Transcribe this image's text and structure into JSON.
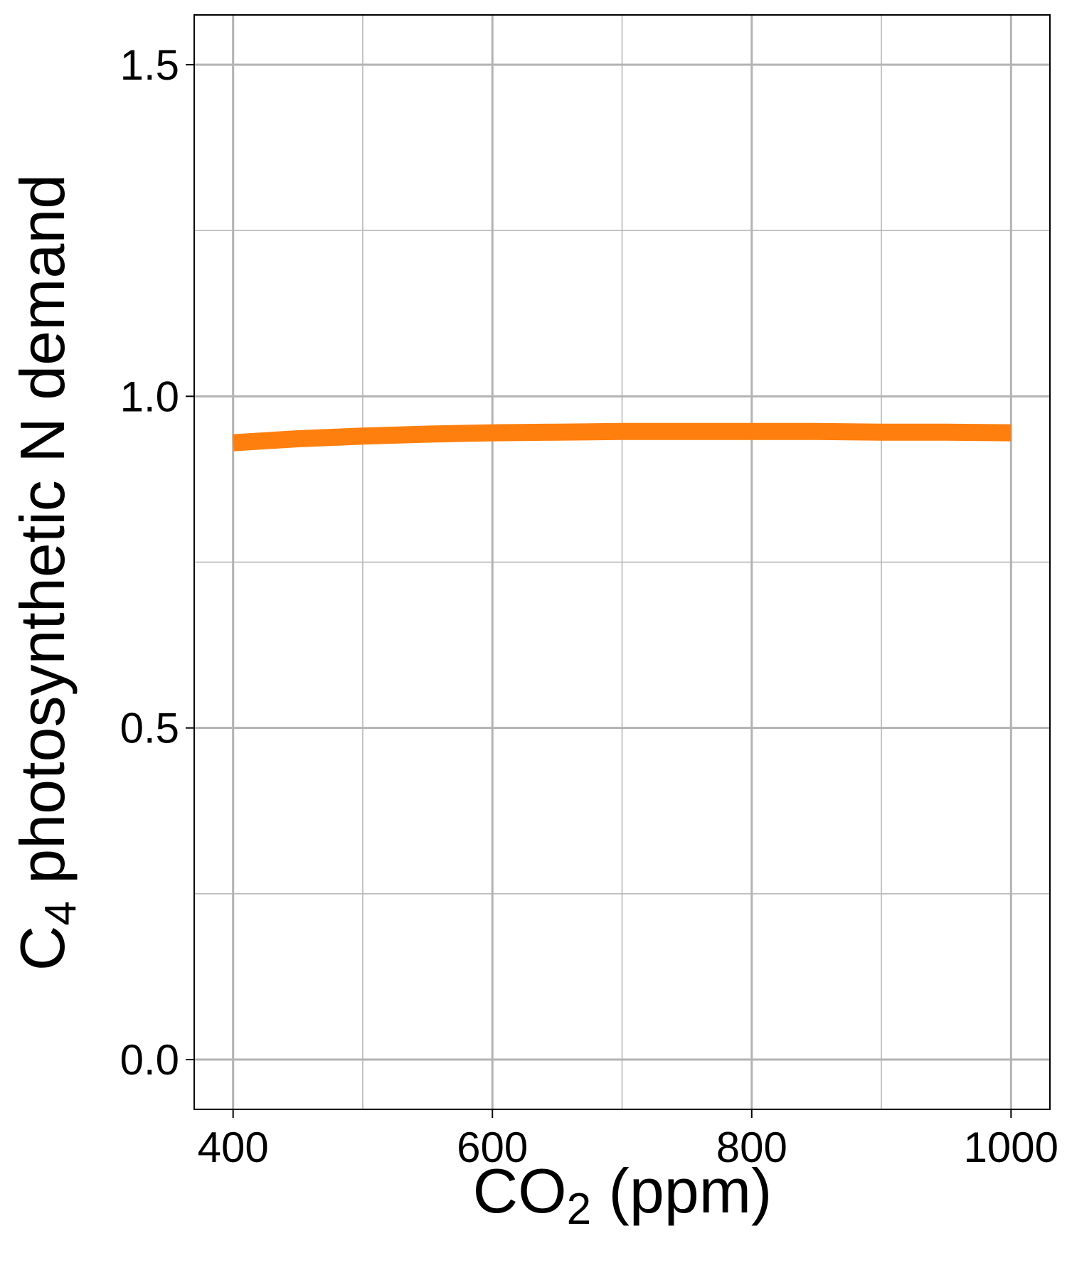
{
  "chart_data": {
    "type": "line",
    "title": "",
    "xlabel": {
      "main": "CO",
      "sub": "2",
      "suffix": " (ppm)"
    },
    "ylabel": {
      "main": "C",
      "sub": "4",
      "suffix": " photosynthetic N demand"
    },
    "xlim": [
      370,
      1030
    ],
    "ylim": [
      -0.075,
      1.575
    ],
    "xticks": [
      400,
      600,
      800,
      1000
    ],
    "xtick_labels": [
      "400",
      "600",
      "800",
      "1000"
    ],
    "yticks": [
      0.0,
      0.5,
      1.0,
      1.5
    ],
    "ytick_labels": [
      "0.0",
      "0.5",
      "1.0",
      "1.5"
    ],
    "x_minor_gridlines": [
      500,
      700,
      900
    ],
    "y_minor_gridlines": [
      0.25,
      0.75,
      1.25
    ],
    "grid": true,
    "legend": "none",
    "series": [
      {
        "x": [
          400,
          450,
          500,
          550,
          600,
          650,
          700,
          750,
          800,
          850,
          900,
          950,
          1000
        ],
        "y": [
          0.93,
          0.936,
          0.94,
          0.943,
          0.945,
          0.946,
          0.947,
          0.947,
          0.947,
          0.947,
          0.946,
          0.946,
          0.945
        ],
        "color": "#FF7F0E"
      }
    ],
    "colors": {
      "grid": "#B3B3B3",
      "axis": "#000000",
      "background": "#FFFFFF"
    }
  }
}
